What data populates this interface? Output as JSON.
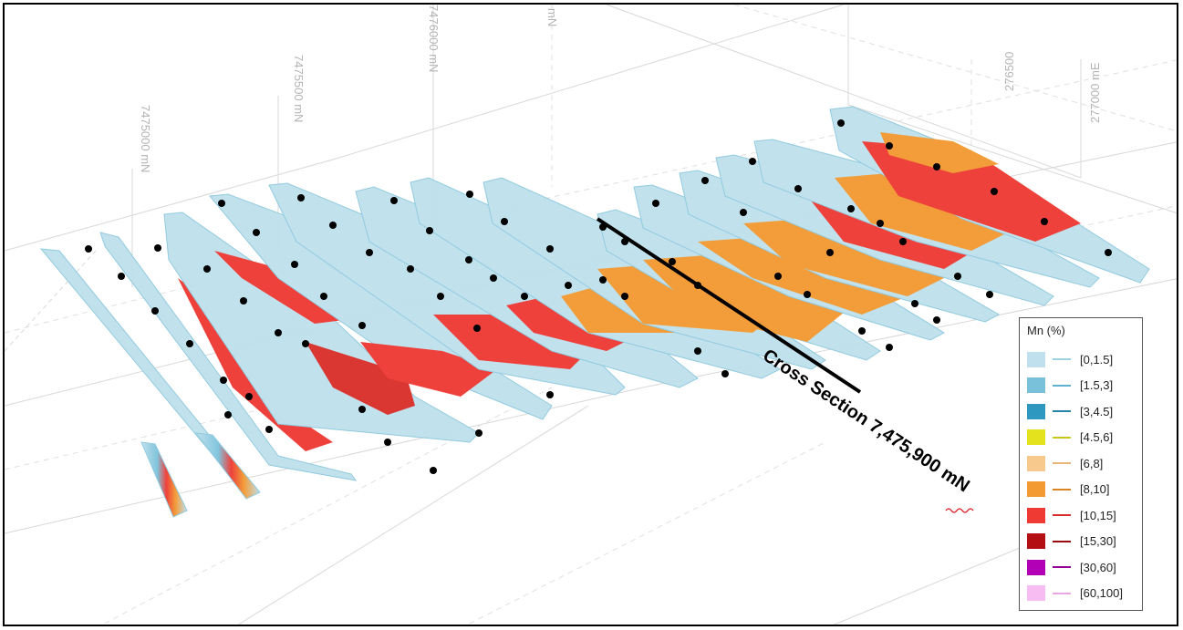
{
  "axes": {
    "northing_labels": [
      "7475000 mN",
      "7475500 mN",
      "7476000 mN",
      "mN"
    ],
    "easting_labels": [
      "276500",
      "277000 mE"
    ]
  },
  "section_label": "Cross Section 7,475,900 mN",
  "legend": {
    "title": "Mn (%)",
    "entries": [
      {
        "label": "[0,1.5]",
        "color": "#bfe0ec",
        "line": "#9fd0e4"
      },
      {
        "label": "[1.5,3]",
        "color": "#79c1db",
        "line": "#5fb2d1"
      },
      {
        "label": "[3,4.5]",
        "color": "#2f98c0",
        "line": "#2a84aa"
      },
      {
        "label": "[4.5,6]",
        "color": "#e4e11d",
        "line": "#c8c71a"
      },
      {
        "label": "[6,8]",
        "color": "#f8c98c",
        "line": "#e8b677"
      },
      {
        "label": "[8,10]",
        "color": "#f39a32",
        "line": "#d98524"
      },
      {
        "label": "[10,15]",
        "color": "#ef3a34",
        "line": "#d62e2a"
      },
      {
        "label": "[15,30]",
        "color": "#b40f12",
        "line": "#9a0c0f"
      },
      {
        "label": "[30,60]",
        "color": "#b100b5",
        "line": "#940097"
      },
      {
        "label": "[60,100]",
        "color": "#f7bdf2",
        "line": "#e9a8e3"
      }
    ]
  }
}
